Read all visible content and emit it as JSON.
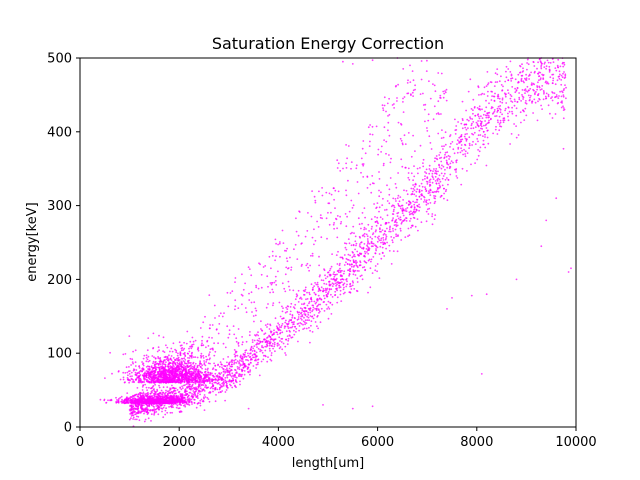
{
  "chart_data": {
    "type": "scatter",
    "title": "Saturation Energy Correction",
    "xlabel": "length[um]",
    "ylabel": "energy[keV]",
    "xlim": [
      0,
      10000
    ],
    "ylim": [
      0,
      500
    ],
    "xticks": [
      "0",
      "2000",
      "4000",
      "6000",
      "8000",
      "10000"
    ],
    "yticks": [
      "0",
      "100",
      "200",
      "300",
      "400",
      "500"
    ],
    "grid": false,
    "marker_color": "#ff00ff",
    "series": [
      {
        "clusters": [
          {
            "x_center": 1500,
            "y_center": 32,
            "x_spread": 350,
            "y_spread": 6,
            "count": 900,
            "note_level": "dense floor"
          },
          {
            "x_center": 1850,
            "y_center": 60,
            "x_spread": 420,
            "y_spread": 22,
            "count": 1300,
            "note_level": "lower branch"
          }
        ],
        "trend_main": [
          [
            1000,
            25
          ],
          [
            2000,
            40
          ],
          [
            3000,
            70
          ],
          [
            4000,
            125
          ],
          [
            5000,
            185
          ],
          [
            6000,
            255
          ],
          [
            7000,
            320
          ],
          [
            8000,
            410
          ],
          [
            9000,
            470
          ]
        ],
        "trend_upper": [
          [
            1000,
            30
          ],
          [
            1500,
            60
          ],
          [
            2000,
            100
          ],
          [
            2500,
            140
          ],
          [
            3000,
            185
          ],
          [
            4000,
            260
          ],
          [
            5000,
            340
          ],
          [
            6000,
            420
          ],
          [
            6500,
            480
          ]
        ],
        "outliers": [
          [
            9900,
            215
          ],
          [
            9850,
            210
          ],
          [
            9300,
            245
          ],
          [
            8800,
            200
          ],
          [
            8200,
            180
          ],
          [
            7900,
            178
          ],
          [
            7500,
            175
          ],
          [
            7400,
            160
          ],
          [
            8100,
            72
          ],
          [
            4900,
            30
          ],
          [
            5900,
            28
          ],
          [
            5500,
            25
          ],
          [
            3400,
            25
          ],
          [
            5300,
            495
          ],
          [
            5500,
            492
          ],
          [
            5900,
            497
          ],
          [
            6400,
            500
          ],
          [
            9600,
            310
          ],
          [
            9400,
            280
          ],
          [
            9700,
            440
          ],
          [
            9300,
            500
          ]
        ]
      }
    ]
  }
}
